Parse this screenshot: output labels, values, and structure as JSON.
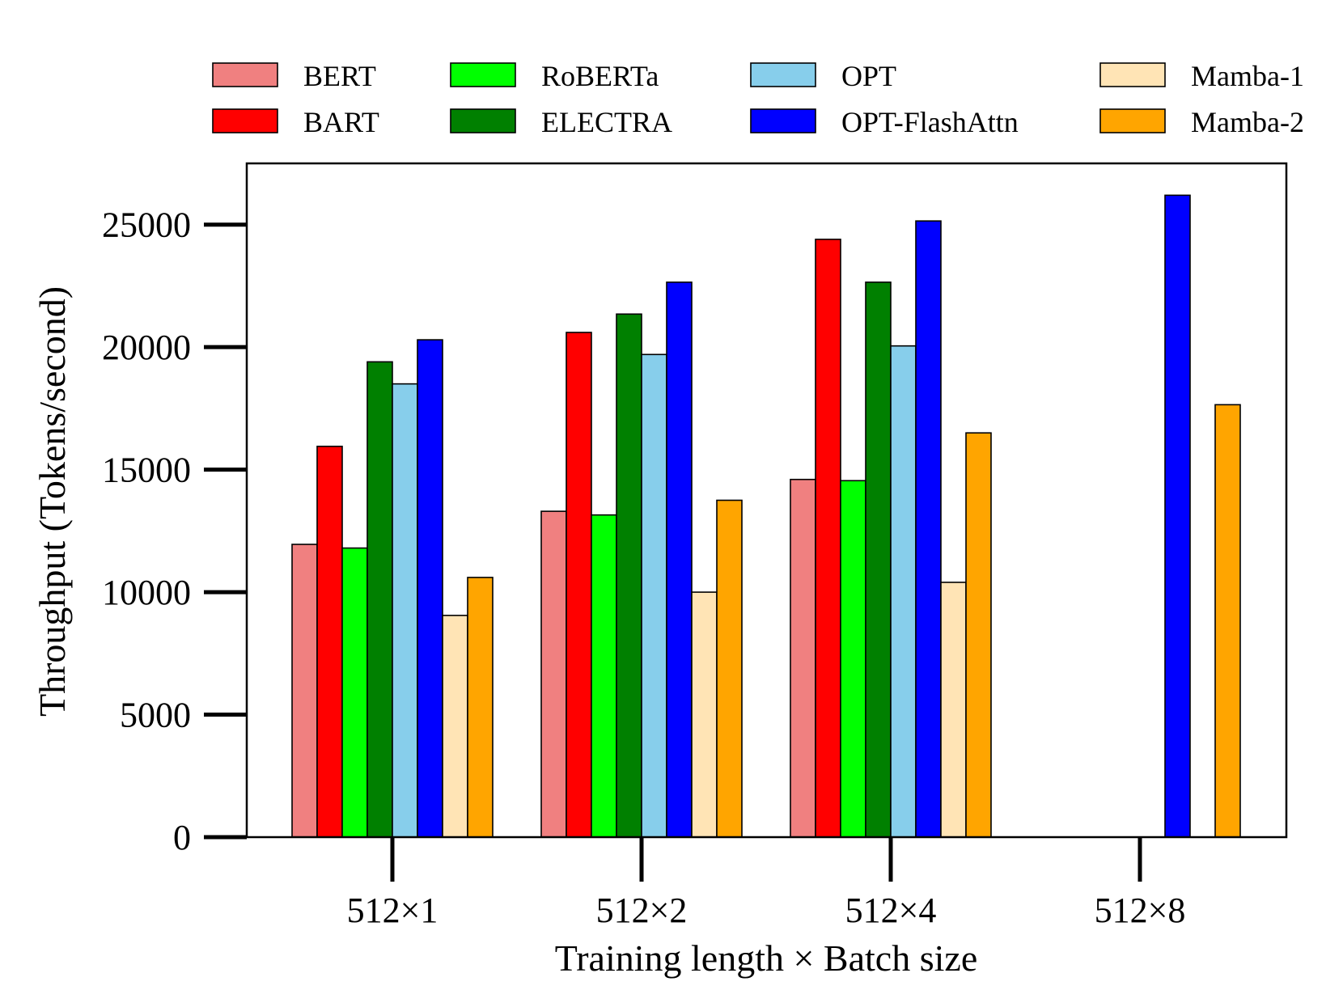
{
  "chart_data": {
    "type": "bar",
    "title": "",
    "xlabel": "Training length × Batch size",
    "ylabel": "Throughput (Tokens/second)",
    "categories": [
      "512×1",
      "512×2",
      "512×4",
      "512×8"
    ],
    "ylim": [
      0,
      27500
    ],
    "yticks": [
      0,
      5000,
      10000,
      15000,
      20000,
      25000
    ],
    "ytick_labels": [
      "0",
      "5000",
      "10000",
      "15000",
      "20000",
      "25000"
    ],
    "grid": false,
    "legend_position": "top",
    "series": [
      {
        "name": "BERT",
        "color": "#f08080",
        "values": [
          11950,
          13300,
          14600,
          null
        ]
      },
      {
        "name": "BART",
        "color": "#ff0000",
        "values": [
          15950,
          20600,
          24400,
          null
        ]
      },
      {
        "name": "RoBERTa",
        "color": "#00ff00",
        "values": [
          11800,
          13150,
          14550,
          null
        ]
      },
      {
        "name": "ELECTRA",
        "color": "#008000",
        "values": [
          19400,
          21350,
          22650,
          null
        ]
      },
      {
        "name": "OPT",
        "color": "#87ceeb",
        "values": [
          18500,
          19700,
          20050,
          null
        ]
      },
      {
        "name": "OPT-FlashAttn",
        "color": "#0000ff",
        "values": [
          20300,
          22650,
          25150,
          26200
        ]
      },
      {
        "name": "Mamba-1",
        "color": "#ffe4b5",
        "values": [
          9050,
          10000,
          10400,
          null
        ]
      },
      {
        "name": "Mamba-2",
        "color": "#ffa500",
        "values": [
          10600,
          13750,
          16500,
          17650
        ]
      }
    ]
  }
}
